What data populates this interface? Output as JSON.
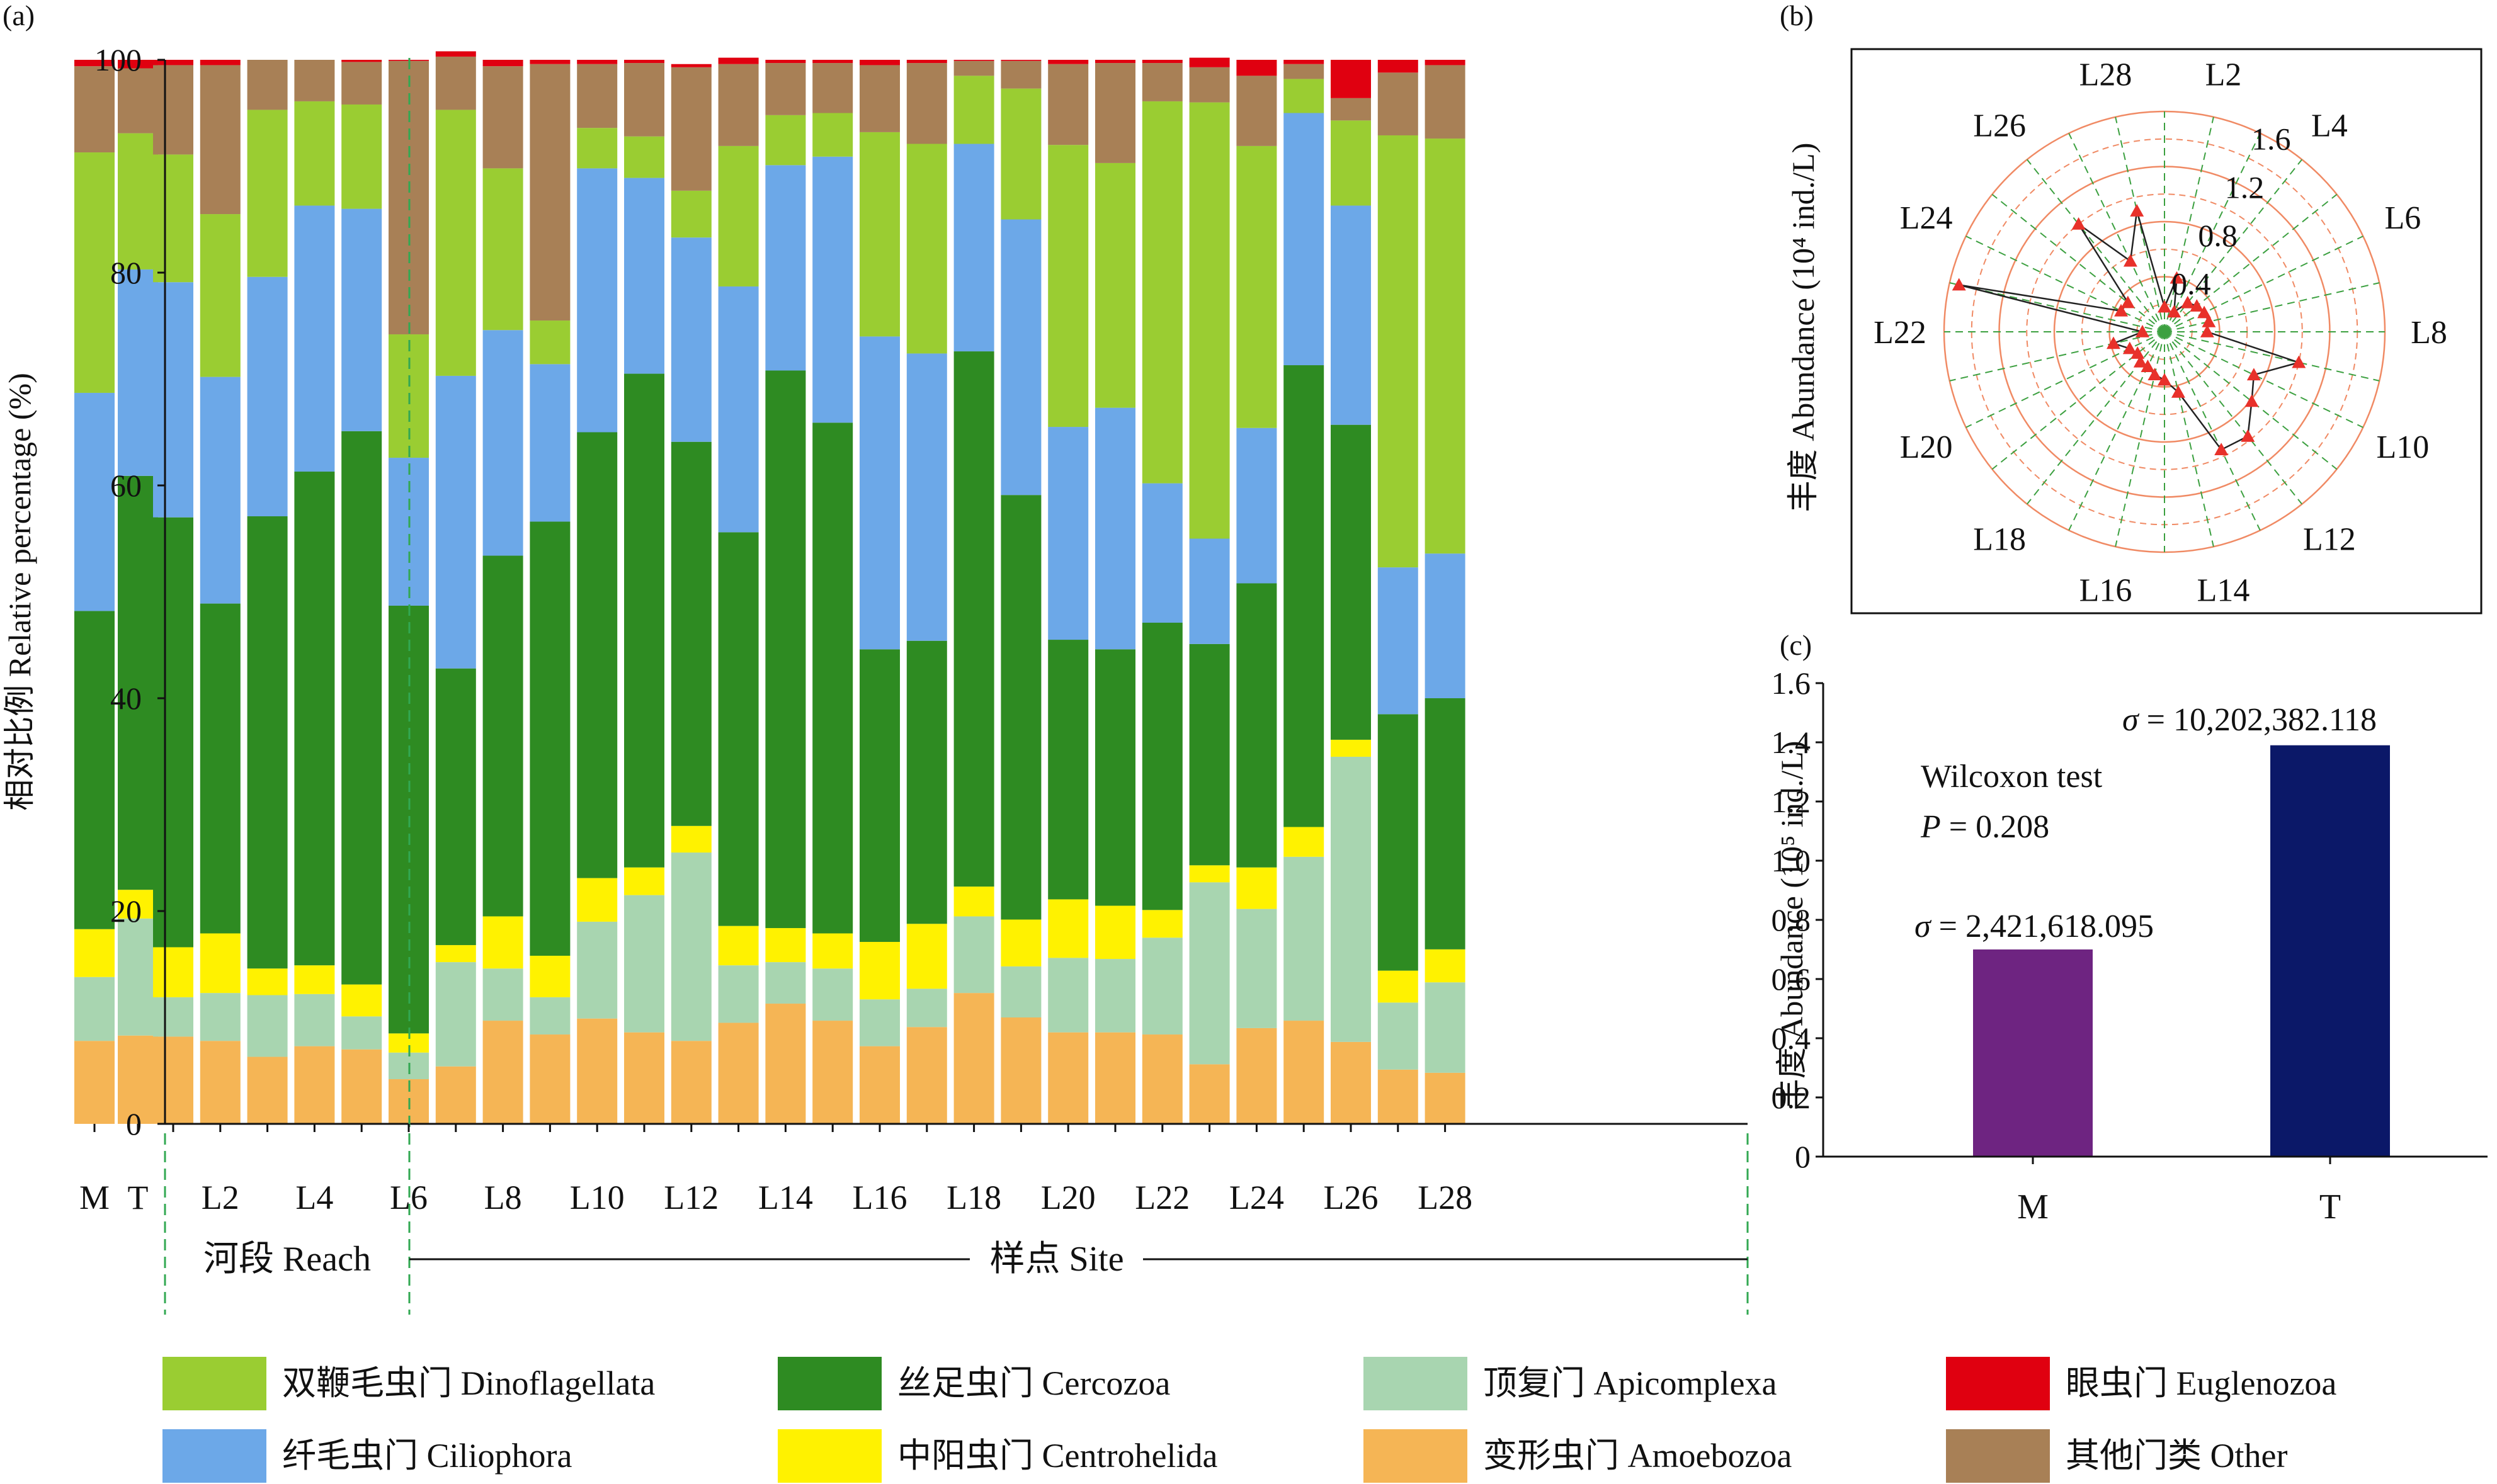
{
  "panel_labels": {
    "a": "(a)",
    "b": "(b)",
    "c": "(c)"
  },
  "colors": {
    "Dinoflagellata": "#9ACD32",
    "Ciliophora": "#6CA8E8",
    "Cercozoa": "#2E8B22",
    "Centrohelida": "#FFF200",
    "Apicomplexa": "#A8D5B0",
    "Amoebozoa": "#F5B555",
    "Euglenozoa": "#E00010",
    "Other": "#A88056",
    "radar_line": "#222222",
    "radar_marker": "#E8312A",
    "radar_ring": "#F08A64",
    "radar_spoke": "#3CA040",
    "bar_M": "#6E2481",
    "bar_T": "#0B1868",
    "divider": "#32A852"
  },
  "legend": [
    {
      "key": "Dinoflagellata",
      "label": "双鞭毛虫门 Dinoflagellata"
    },
    {
      "key": "Cercozoa",
      "label": "丝足虫门 Cercozoa"
    },
    {
      "key": "Apicomplexa",
      "label": "顶复门 Apicomplexa"
    },
    {
      "key": "Euglenozoa",
      "label": "眼虫门 Euglenozoa"
    },
    {
      "key": "Ciliophora",
      "label": "纤毛虫门 Ciliophora"
    },
    {
      "key": "Centrohelida",
      "label": "中阳虫门 Centrohelida"
    },
    {
      "key": "Amoebozoa",
      "label": "变形虫门 Amoebozoa"
    },
    {
      "key": "Other",
      "label": "其他门类 Other"
    }
  ],
  "chart_data": [
    {
      "panel": "a",
      "type": "bar",
      "stacked": true,
      "ylabel": "相对比例 Relative percentage (%)",
      "ylim": [
        0,
        100
      ],
      "yticks": [
        0,
        20,
        40,
        60,
        80,
        100
      ],
      "group_labels": {
        "reach": "河段 Reach",
        "site": "样点 Site"
      },
      "categories": [
        "M",
        "T",
        "L1",
        "L2",
        "L3",
        "L4",
        "L5",
        "L6",
        "L7",
        "L8",
        "L9",
        "L10",
        "L11",
        "L12",
        "L13",
        "L14",
        "L15",
        "L16",
        "L17",
        "L18",
        "L19",
        "L20",
        "L21",
        "L22",
        "L23",
        "L24",
        "L25",
        "L26",
        "L27",
        "L28"
      ],
      "tick_labels": [
        "M",
        "T",
        "L2",
        "L4",
        "L6",
        "L8",
        "L10",
        "L12",
        "L14",
        "L16",
        "L18",
        "L20",
        "L22",
        "L24",
        "L26",
        "L28"
      ],
      "series": [
        {
          "name": "Amoebozoa",
          "values": [
            7.8,
            8.3,
            8.2,
            7.8,
            6.3,
            7.3,
            7.0,
            4.2,
            5.4,
            9.7,
            8.4,
            9.9,
            8.6,
            7.8,
            9.5,
            11.3,
            9.7,
            7.3,
            9.1,
            12.3,
            10.0,
            8.6,
            8.6,
            8.4,
            5.6,
            9.0,
            9.7,
            7.7,
            5.1,
            4.8
          ]
        },
        {
          "name": "Apicomplexa",
          "values": [
            6.0,
            11.0,
            3.7,
            4.5,
            5.8,
            4.9,
            3.1,
            2.5,
            9.8,
            4.9,
            3.5,
            9.1,
            12.9,
            17.7,
            5.4,
            3.9,
            4.9,
            4.4,
            3.6,
            7.2,
            4.8,
            7.0,
            6.9,
            9.1,
            17.1,
            11.2,
            15.4,
            26.8,
            6.3,
            8.5
          ]
        },
        {
          "name": "Centrohelida",
          "values": [
            4.5,
            2.7,
            4.7,
            5.6,
            2.5,
            2.7,
            3.0,
            1.8,
            1.6,
            4.9,
            3.9,
            4.1,
            2.6,
            2.5,
            3.7,
            3.2,
            3.3,
            5.4,
            6.1,
            2.8,
            4.4,
            5.5,
            5.0,
            2.6,
            1.6,
            3.9,
            2.8,
            1.6,
            3.0,
            3.1
          ]
        },
        {
          "name": "Cercozoa",
          "values": [
            29.9,
            38.9,
            40.4,
            31.0,
            42.5,
            46.4,
            52.0,
            40.2,
            26.0,
            33.9,
            40.8,
            41.9,
            46.4,
            36.1,
            37.0,
            52.4,
            48.0,
            27.5,
            26.6,
            50.3,
            39.9,
            24.4,
            24.1,
            27.0,
            20.8,
            26.7,
            43.4,
            29.6,
            24.1,
            23.6
          ]
        },
        {
          "name": "Ciliophora",
          "values": [
            20.5,
            19.4,
            22.1,
            21.3,
            22.5,
            25.0,
            20.9,
            13.9,
            27.5,
            21.2,
            14.8,
            24.8,
            18.4,
            19.2,
            23.1,
            19.3,
            25.0,
            29.4,
            27.0,
            19.5,
            25.9,
            20.0,
            22.7,
            13.1,
            9.9,
            14.6,
            23.7,
            20.6,
            13.8,
            13.6
          ]
        },
        {
          "name": "Dinoflagellata",
          "values": [
            22.6,
            12.8,
            12.0,
            15.3,
            15.7,
            9.8,
            9.8,
            11.6,
            25.0,
            15.2,
            4.1,
            3.8,
            3.9,
            4.4,
            13.2,
            4.7,
            4.1,
            19.2,
            19.7,
            6.4,
            12.3,
            26.5,
            23.0,
            35.9,
            41.0,
            26.5,
            3.2,
            8.0,
            40.6,
            39.0
          ]
        },
        {
          "name": "Other",
          "values": [
            8.1,
            6.1,
            8.4,
            14.0,
            4.7,
            3.9,
            4.0,
            25.7,
            5.0,
            9.6,
            24.1,
            6.0,
            6.9,
            11.6,
            7.7,
            4.9,
            4.7,
            6.3,
            7.6,
            1.4,
            2.6,
            7.6,
            9.4,
            3.6,
            3.3,
            6.6,
            1.4,
            2.1,
            5.9,
            6.9
          ]
        },
        {
          "name": "Euglenozoa",
          "values": [
            0.6,
            0.8,
            0.5,
            0.5,
            0.0,
            0.0,
            0.2,
            0.1,
            0.5,
            0.6,
            0.4,
            0.4,
            0.3,
            0.3,
            0.6,
            0.3,
            0.3,
            0.5,
            0.3,
            0.1,
            0.1,
            0.4,
            0.3,
            0.3,
            0.9,
            1.5,
            0.4,
            3.6,
            1.2,
            0.5
          ]
        }
      ]
    },
    {
      "panel": "b",
      "type": "radar",
      "ylabel": "丰度 Abundance (10⁴ ind./L)",
      "rlim": [
        0,
        1.6
      ],
      "rticks": [
        0.4,
        0.8,
        1.2,
        1.6
      ],
      "categories": [
        "L1",
        "L2",
        "L3",
        "L4",
        "L5",
        "L6",
        "L7",
        "L8",
        "L9",
        "L10",
        "L11",
        "L12",
        "L13",
        "L14",
        "L15",
        "L16",
        "L17",
        "L18",
        "L19",
        "L20",
        "L21",
        "L22",
        "L23",
        "L24",
        "L25",
        "L26",
        "L27",
        "L28"
      ],
      "category_labels": [
        "L2",
        "L4",
        "L6",
        "L8",
        "L10",
        "L12",
        "L14",
        "L16",
        "L18",
        "L20",
        "L22",
        "L24",
        "L26",
        "L28"
      ],
      "values": [
        0.18,
        0.4,
        0.16,
        0.27,
        0.3,
        0.32,
        0.33,
        0.31,
        1.0,
        0.72,
        0.81,
        0.97,
        0.95,
        0.45,
        0.35,
        0.32,
        0.28,
        0.28,
        0.25,
        0.28,
        0.38,
        0.16,
        1.53,
        0.35,
        0.34,
        1.0,
        0.57,
        0.9
      ]
    },
    {
      "panel": "c",
      "type": "bar",
      "ylabel": "丰度 Abundance (10⁵ ind./L)",
      "ylim": [
        0,
        1.6
      ],
      "yticks": [
        "0",
        "0.2",
        "0.4",
        "0.6",
        "0.8",
        "1.0",
        "1.2",
        "1.4",
        "1.6"
      ],
      "categories": [
        "M",
        "T"
      ],
      "values": [
        0.7,
        1.39
      ],
      "annotations": {
        "test_name": "Wilcoxon test",
        "p_symbol": "P",
        "p_value": " = 0.208",
        "sigma_symbol": "σ",
        "sigma_M": " = 2,421,618.095",
        "sigma_T": " = 10,202,382.118"
      }
    }
  ]
}
